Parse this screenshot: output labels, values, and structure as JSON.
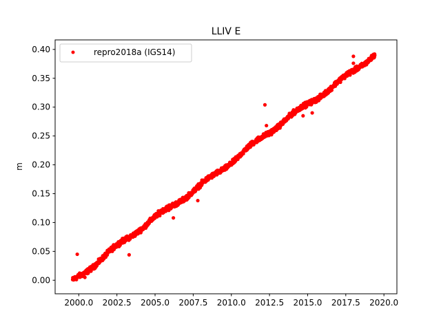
{
  "chart_data": {
    "type": "scatter",
    "title": "LLIV E",
    "xlabel": "",
    "ylabel": "m",
    "xlim": [
      1998.45,
      2020.85
    ],
    "ylim": [
      -0.0235,
      0.4165
    ],
    "xticks": [
      2000.0,
      2002.5,
      2005.0,
      2007.5,
      2010.0,
      2012.5,
      2015.0,
      2017.5,
      2020.0
    ],
    "xtick_labels": [
      "2000.0",
      "2002.5",
      "2005.0",
      "2007.5",
      "2010.0",
      "2012.5",
      "2015.0",
      "2017.5",
      "2020.0"
    ],
    "yticks": [
      0.0,
      0.05,
      0.1,
      0.15,
      0.2,
      0.25,
      0.3,
      0.35,
      0.4
    ],
    "ytick_labels": [
      "0.00",
      "0.05",
      "0.10",
      "0.15",
      "0.20",
      "0.25",
      "0.30",
      "0.35",
      "0.40"
    ],
    "grid": false,
    "legend_position": "top-left",
    "series": [
      {
        "name": "repro2018a (IGS14)",
        "color": "#ff0000",
        "marker": "circle",
        "x_start": 1999.6,
        "x_end": 2019.4,
        "trend_start": 0.0,
        "trend_end": 0.392,
        "outliers": [
          {
            "x": 1999.9,
            "y": 0.045
          },
          {
            "x": 2003.3,
            "y": 0.044
          },
          {
            "x": 2005.9,
            "y": 0.121
          },
          {
            "x": 2006.2,
            "y": 0.108
          },
          {
            "x": 2007.8,
            "y": 0.138
          },
          {
            "x": 2012.2,
            "y": 0.304
          },
          {
            "x": 2012.3,
            "y": 0.268
          },
          {
            "x": 2015.3,
            "y": 0.29
          },
          {
            "x": 2018.0,
            "y": 0.388
          },
          {
            "x": 2018.0,
            "y": 0.376
          },
          {
            "x": 2000.4,
            "y": 0.005
          },
          {
            "x": 2014.7,
            "y": 0.285
          }
        ]
      }
    ]
  }
}
